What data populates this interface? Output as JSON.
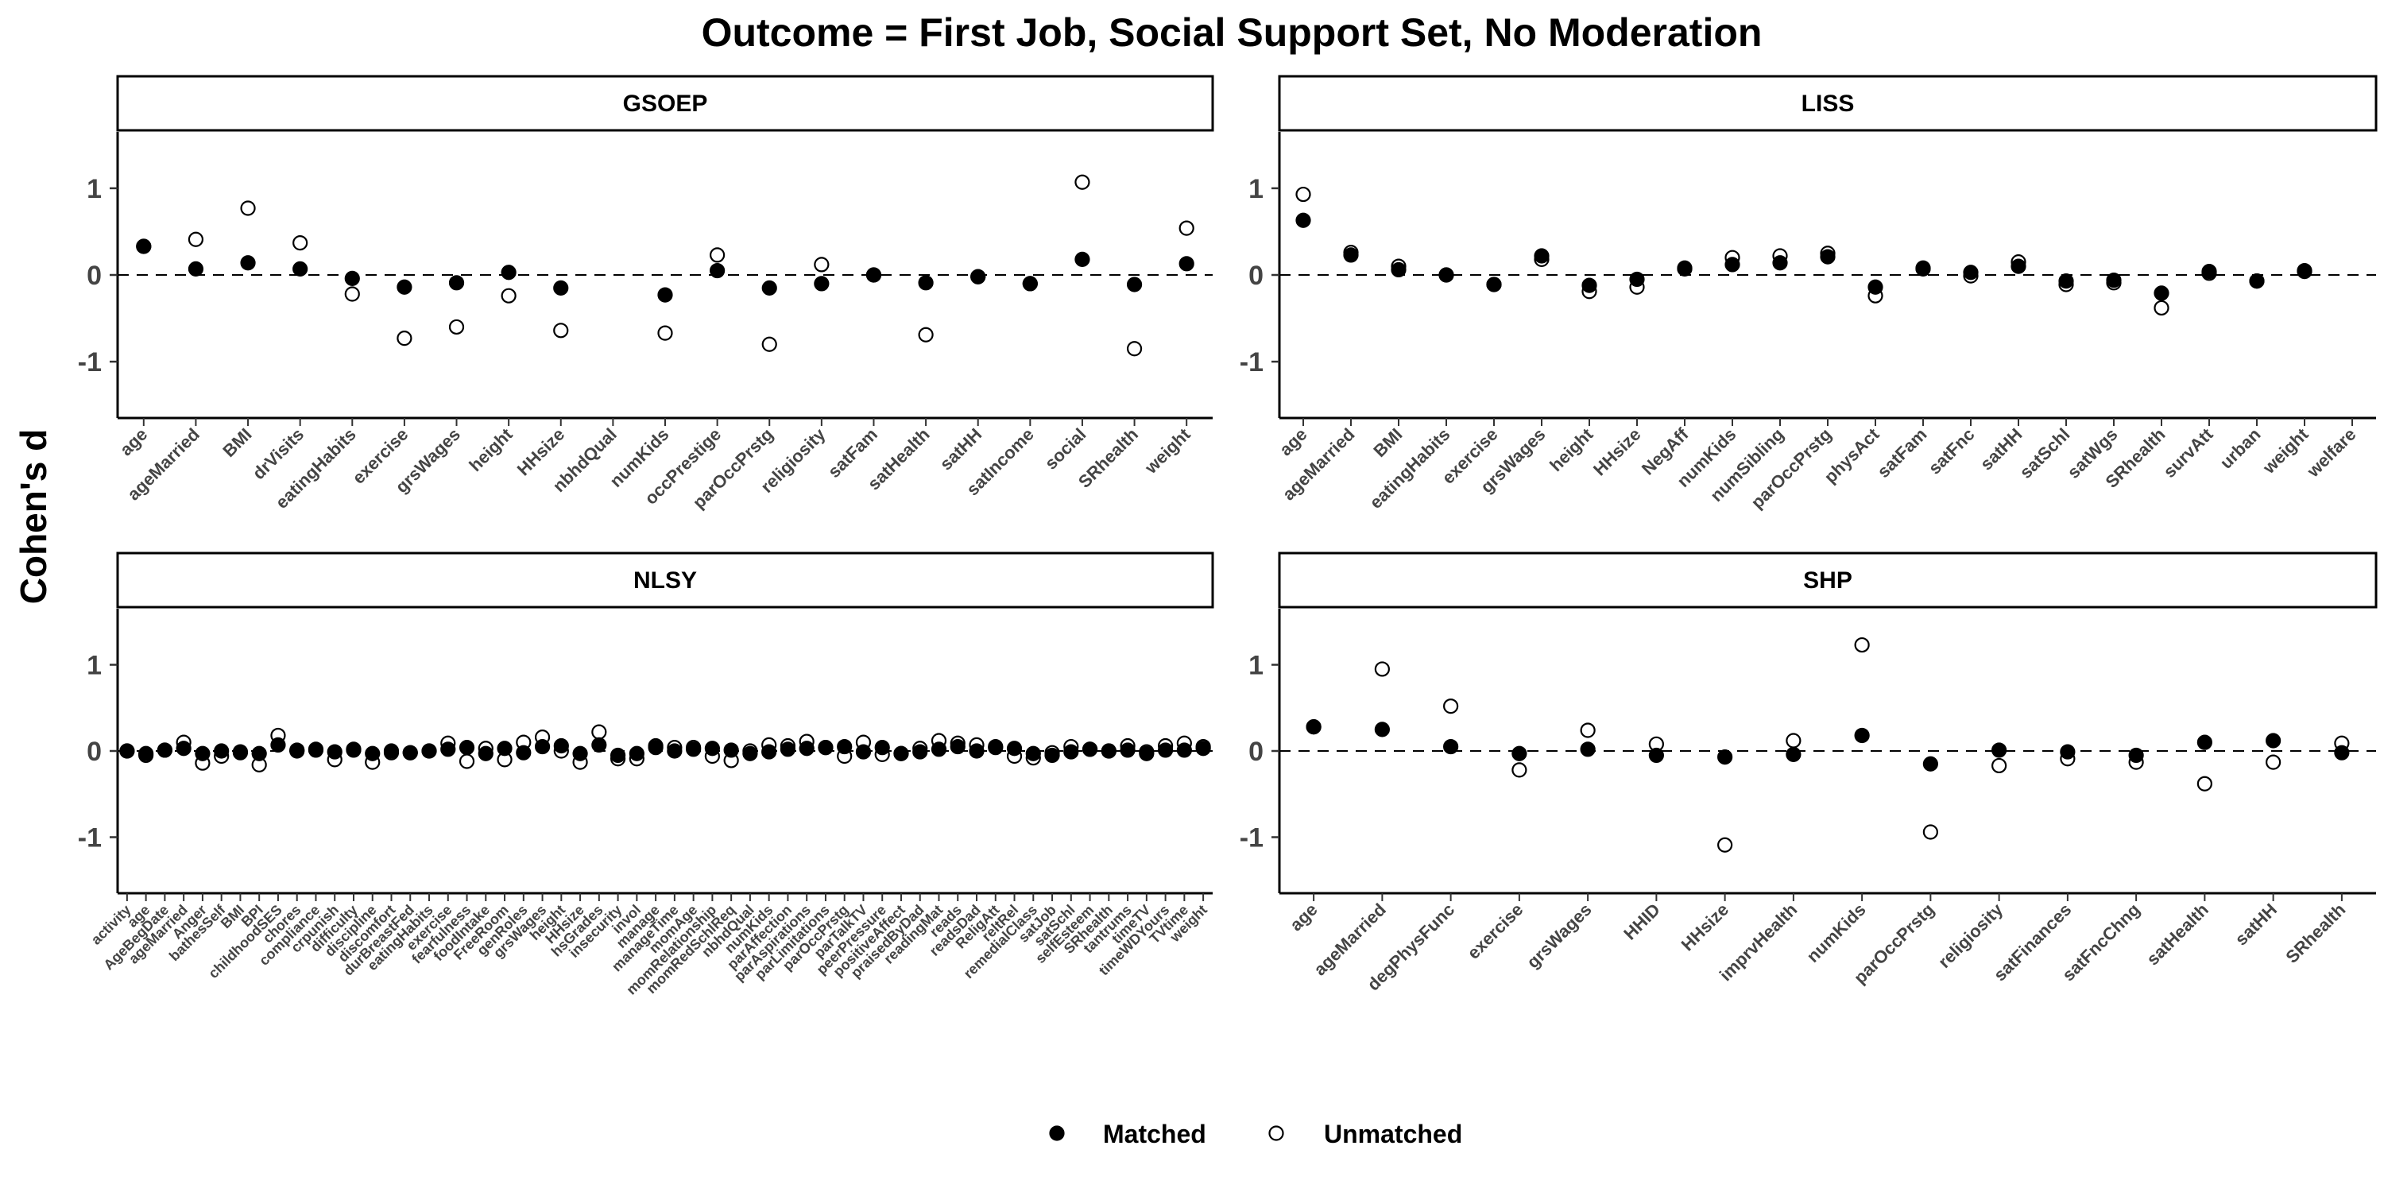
{
  "chart_data": {
    "type": "scatter",
    "title": "Outcome = First Job, Social Support Set, No Moderation",
    "ylabel": "Cohen's d",
    "xlabel": "",
    "ylim": [
      -1.65,
      1.65
    ],
    "yticks": [
      -1,
      0,
      1
    ],
    "reference_line": 0,
    "legend_position": "bottom",
    "legend": [
      {
        "name": "Matched",
        "marker": "filled-circle"
      },
      {
        "name": "Unmatched",
        "marker": "open-circle"
      }
    ],
    "panels": [
      {
        "title": "GSOEP",
        "categories": [
          "age",
          "ageMarried",
          "BMI",
          "drVisits",
          "eatingHabits",
          "exercise",
          "grsWages",
          "height",
          "HHsize",
          "nbhdQual",
          "numKids",
          "occPrestige",
          "parOccPrstg",
          "religiosity",
          "satFam",
          "satHealth",
          "satHH",
          "satIncome",
          "social",
          "SRhealth",
          "weight"
        ],
        "series": [
          {
            "name": "Matched",
            "values": [
              0.33,
              0.07,
              0.14,
              0.07,
              -0.04,
              -0.14,
              -0.09,
              0.03,
              -0.15,
              null,
              -0.23,
              0.05,
              -0.15,
              -0.1,
              0.0,
              -0.09,
              -0.02,
              -0.1,
              0.18,
              -0.11,
              0.13
            ]
          },
          {
            "name": "Unmatched",
            "values": [
              0.33,
              0.41,
              0.77,
              0.37,
              -0.22,
              -0.73,
              -0.6,
              -0.24,
              -0.64,
              null,
              -0.67,
              0.23,
              -0.8,
              0.12,
              0.0,
              -0.69,
              -0.02,
              -0.1,
              1.07,
              -0.85,
              0.54
            ]
          }
        ]
      },
      {
        "title": "LISS",
        "categories": [
          "age",
          "ageMarried",
          "BMI",
          "eatingHabits",
          "exercise",
          "grsWages",
          "height",
          "HHsize",
          "NegAff",
          "numKids",
          "numSibling",
          "parOccPrstg",
          "physAct",
          "satFam",
          "satFnc",
          "satHH",
          "satSchl",
          "satWgs",
          "SRhealth",
          "survAtt",
          "urban",
          "weight",
          "welfare"
        ],
        "series": [
          {
            "name": "Matched",
            "values": [
              0.63,
              0.23,
              0.06,
              0.0,
              -0.11,
              0.22,
              -0.12,
              -0.05,
              0.08,
              0.12,
              0.14,
              0.21,
              -0.14,
              0.07,
              0.03,
              0.1,
              -0.07,
              -0.06,
              -0.21,
              0.04,
              -0.07,
              0.05,
              null
            ]
          },
          {
            "name": "Unmatched",
            "values": [
              0.93,
              0.26,
              0.1,
              0.0,
              -0.11,
              0.18,
              -0.19,
              -0.14,
              0.07,
              0.2,
              0.22,
              0.25,
              -0.24,
              0.08,
              -0.01,
              0.15,
              -0.11,
              -0.09,
              -0.38,
              0.02,
              -0.07,
              0.04,
              null
            ]
          }
        ]
      },
      {
        "title": "NLSY",
        "categories": [
          "activity",
          "age",
          "AgeBegDate",
          "ageMarried",
          "Anger",
          "bathesSelf",
          "BMI",
          "BPI",
          "childhoodSES",
          "chores",
          "compliance",
          "crpunish",
          "difficulty",
          "discipline",
          "discomfort",
          "durBreastFed",
          "eatingHabits",
          "exercise",
          "fearfulness",
          "foodIntake",
          "FreeRoom",
          "genRoles",
          "grsWages",
          "height",
          "HHsize",
          "hsGrades",
          "insecurity",
          "invol",
          "manage",
          "manageTime",
          "momAge",
          "momRelationship",
          "momRedSchlReq",
          "nbhdQual",
          "numKids",
          "parAffection",
          "parAspirations",
          "parLimitations",
          "parOccPrstg",
          "parTalkTV",
          "peerPressure",
          "positiveAffect",
          "praisedByDad",
          "readingMat",
          "reads",
          "readsDad",
          "ReligAtt",
          "reltRel",
          "remedialClass",
          "satJob",
          "satSchl",
          "selfEsteem",
          "SRhealth",
          "tantrums",
          "timeTV",
          "timeWDYours",
          "TVtime",
          "weight"
        ],
        "series": [
          {
            "name": "Matched",
            "values": [
              0.0,
              -0.03,
              0.01,
              0.03,
              -0.03,
              0.0,
              -0.01,
              -0.03,
              0.07,
              0.01,
              0.02,
              -0.01,
              0.02,
              -0.03,
              0.0,
              -0.02,
              0.0,
              0.02,
              0.04,
              -0.03,
              0.03,
              -0.02,
              0.05,
              0.06,
              -0.03,
              0.07,
              -0.05,
              -0.03,
              0.04,
              0.0,
              0.02,
              0.03,
              0.01,
              -0.03,
              -0.01,
              0.02,
              0.03,
              0.04,
              0.05,
              -0.01,
              0.04,
              -0.03,
              -0.01,
              0.02,
              0.05,
              0.0,
              0.04,
              0.03,
              -0.03,
              -0.05,
              -0.01,
              0.02,
              0.0,
              0.01,
              -0.03,
              0.01,
              0.01,
              0.03
            ]
          },
          {
            "name": "Unmatched",
            "values": [
              0.0,
              -0.05,
              0.01,
              0.1,
              -0.14,
              -0.06,
              -0.02,
              -0.16,
              0.18,
              0.0,
              0.01,
              -0.1,
              0.01,
              -0.13,
              -0.02,
              -0.02,
              0.0,
              0.09,
              -0.12,
              0.03,
              -0.1,
              0.1,
              0.16,
              0.0,
              -0.13,
              0.22,
              -0.09,
              -0.09,
              0.06,
              0.04,
              0.04,
              -0.06,
              -0.11,
              0.0,
              0.07,
              0.06,
              0.11,
              0.04,
              -0.06,
              0.1,
              -0.04,
              -0.03,
              0.03,
              0.12,
              0.09,
              0.07,
              0.05,
              -0.06,
              -0.08,
              -0.02,
              0.05,
              0.02,
              0.0,
              0.06,
              -0.01,
              0.06,
              0.09,
              0.05
            ]
          }
        ]
      },
      {
        "title": "SHP",
        "categories": [
          "age",
          "ageMarried",
          "degPhysFunc",
          "exercise",
          "grsWages",
          "HHID",
          "HHsize",
          "imprvHealth",
          "numKids",
          "parOccPrstg",
          "religiosity",
          "satFinances",
          "satFncChng",
          "satHealth",
          "satHH",
          "SRhealth"
        ],
        "series": [
          {
            "name": "Matched",
            "values": [
              0.28,
              0.25,
              0.05,
              -0.03,
              0.02,
              -0.05,
              -0.07,
              -0.04,
              0.18,
              -0.15,
              0.01,
              -0.01,
              -0.05,
              0.1,
              0.12,
              -0.02
            ]
          },
          {
            "name": "Unmatched",
            "values": [
              0.28,
              0.95,
              0.52,
              -0.22,
              0.24,
              0.08,
              -1.09,
              0.12,
              1.23,
              -0.94,
              -0.17,
              -0.09,
              -0.13,
              -0.38,
              -0.13,
              0.09
            ]
          }
        ]
      }
    ]
  }
}
